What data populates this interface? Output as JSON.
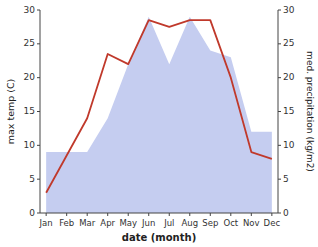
{
  "chart_data": {
    "type": "line",
    "xlabel": "date (month)",
    "ylabel": "max temp (C)",
    "y2label": "med. precipitation (kg/m2)",
    "categories": [
      "Jan",
      "Feb",
      "Mar",
      "Apr",
      "May",
      "Jun",
      "Jul",
      "Aug",
      "Sep",
      "Oct",
      "Nov",
      "Dec"
    ],
    "series": [
      {
        "type": "area",
        "axis": "y2",
        "color": "#c5cdf0",
        "values": [
          9.0,
          9.0,
          9.0,
          14.0,
          22.0,
          29.0,
          22.0,
          29.0,
          24.0,
          23.0,
          12.0,
          12.0
        ]
      },
      {
        "type": "line",
        "color": "#c0392b",
        "values": [
          3.0,
          8.5,
          14.0,
          23.5,
          22.0,
          28.5,
          27.5,
          28.5,
          28.5,
          20.0,
          9.0,
          8.0
        ]
      }
    ],
    "ylim": [
      0,
      30
    ],
    "yticks": [
      0,
      5,
      10,
      15,
      20,
      25,
      30
    ],
    "y2lim": [
      0,
      30
    ],
    "y2ticks": [
      0,
      5,
      10,
      15,
      20,
      25,
      30
    ],
    "grid": false
  }
}
